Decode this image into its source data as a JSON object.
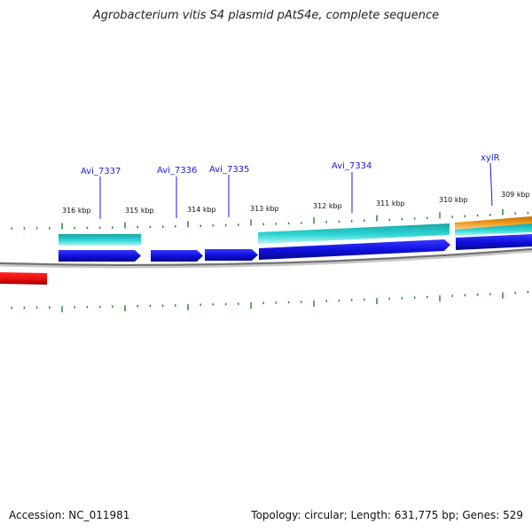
{
  "title": "Agrobacterium vitis S4 plasmid pAtS4e, complete sequence",
  "footer": {
    "accession_label": "Accession:",
    "accession": "NC_011981",
    "topology": "Topology: circular; Length: 631,775 bp; Genes: 529"
  },
  "kbp_labels": [
    "316 kbp",
    "315 kbp",
    "314 kbp",
    "313 kbp",
    "312 kbp",
    "311 kbp",
    "310 kbp",
    "309 kbp"
  ],
  "gene_labels": [
    "Avi_7337",
    "Avi_7336",
    "Avi_7335",
    "Avi_7334",
    "xylR"
  ],
  "colors": {
    "cds_forward": "#1010e0",
    "rna_cyan": "#20c8c8",
    "orange": "#f08a10",
    "red": "#e81010",
    "backbone": "#808080",
    "tick": "#2a8a2a",
    "label": "#1a1adb"
  }
}
